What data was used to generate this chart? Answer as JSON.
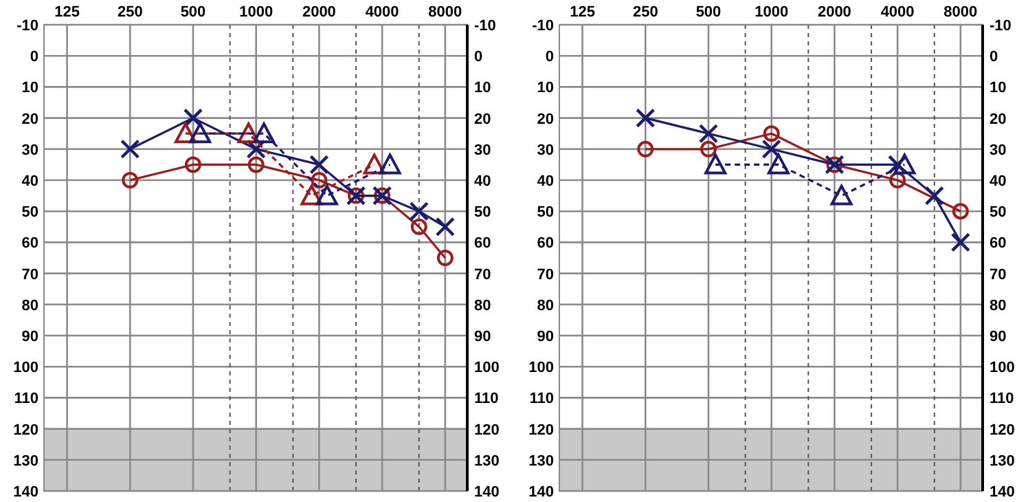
{
  "chart_data": [
    {
      "type": "line",
      "log": "x",
      "grid": true,
      "xlim": [
        97,
        10200
      ],
      "xticks": [
        125,
        250,
        500,
        {
          "value": 750,
          "label": null
        },
        1000,
        {
          "value": 1500,
          "label": null
        },
        2000,
        {
          "value": 3000,
          "label": null
        },
        4000,
        {
          "value": 6000,
          "label": null
        },
        8000
      ],
      "ylim": [
        140,
        -10
      ],
      "yticks": [
        -10,
        0,
        10,
        20,
        30,
        40,
        50,
        60,
        70,
        80,
        90,
        100,
        110,
        120,
        130,
        140
      ],
      "y2lim": [
        140,
        -10
      ],
      "y2ticks": [
        -10,
        0,
        10,
        20,
        30,
        40,
        50,
        60,
        70,
        80,
        90,
        100,
        110,
        120,
        130,
        140
      ],
      "bands": [
        {
          "axis": "y",
          "from": 120,
          "to": 140,
          "color": "#c8c8c8"
        }
      ],
      "series": [
        {
          "color": "#9b1c1c",
          "marker": "circle",
          "line_style": "solid",
          "x": [
            250,
            500,
            1000,
            2000,
            3000,
            4000,
            6000,
            8000
          ],
          "values": [
            40,
            35,
            35,
            40,
            45,
            45,
            55,
            65
          ]
        },
        {
          "color": "#1c1c6e",
          "marker": "cross",
          "line_style": "solid",
          "x": [
            250,
            500,
            1000,
            2000,
            3000,
            4000,
            6000,
            8000
          ],
          "values": [
            30,
            20,
            30,
            35,
            45,
            45,
            50,
            55
          ]
        },
        {
          "color": "#9b1c1c",
          "marker": "triangle",
          "line_style": "dashed",
          "x": [
            460,
            920,
            1840,
            3670
          ],
          "values": [
            25,
            25,
            45,
            35
          ]
        },
        {
          "color": "#1c1c6e",
          "marker": "triangle",
          "line_style": "dashed",
          "x": [
            540,
            1090,
            2180,
            4360
          ],
          "values": [
            25,
            25,
            45,
            35
          ]
        }
      ]
    },
    {
      "type": "line",
      "log": "x",
      "grid": true,
      "xlim": [
        97,
        10200
      ],
      "xticks": [
        125,
        250,
        500,
        {
          "value": 750,
          "label": null
        },
        1000,
        {
          "value": 1500,
          "label": null
        },
        2000,
        {
          "value": 3000,
          "label": null
        },
        4000,
        {
          "value": 6000,
          "label": null
        },
        8000
      ],
      "ylim": [
        140,
        -10
      ],
      "yticks": [
        -10,
        0,
        10,
        20,
        30,
        40,
        50,
        60,
        70,
        80,
        90,
        100,
        110,
        120,
        130,
        140
      ],
      "y2lim": [
        140,
        -10
      ],
      "y2ticks": [
        -10,
        0,
        10,
        20,
        30,
        40,
        50,
        60,
        70,
        80,
        90,
        100,
        110,
        120,
        130,
        140
      ],
      "bands": [
        {
          "axis": "y",
          "from": 120,
          "to": 140,
          "color": "#c8c8c8"
        }
      ],
      "series": [
        {
          "color": "#9b1c1c",
          "marker": "circle",
          "line_style": "solid",
          "x": [
            250,
            500,
            1000,
            2000,
            4000,
            8000
          ],
          "values": [
            30,
            30,
            25,
            35,
            40,
            50
          ]
        },
        {
          "color": "#1c1c6e",
          "marker": "cross",
          "line_style": "solid",
          "x": [
            250,
            500,
            1000,
            2000,
            4000,
            6000,
            8000
          ],
          "values": [
            20,
            25,
            30,
            35,
            35,
            45,
            60
          ]
        },
        {
          "color": "#1c1c6e",
          "marker": "triangle",
          "line_style": "dashed",
          "x": [
            540,
            1080,
            2160,
            4320
          ],
          "values": [
            35,
            35,
            45,
            35
          ]
        }
      ]
    }
  ]
}
